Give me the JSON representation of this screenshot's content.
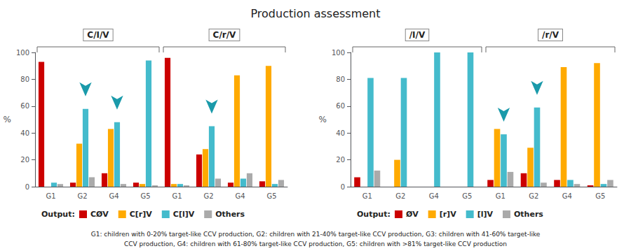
{
  "title": "Production assessment",
  "annotations": [
    "G1: children with 0-20% target-like CCV production, G2: children with 21-40% target-like CCV production, G3: children with 41-60% target-like",
    "CCV production, G4: children with 61-80% target-like CCV production, G5: children with >81% target-like CCV production"
  ],
  "chart_data": [
    {
      "type": "bar",
      "y_label": "%",
      "categories": [
        "G1",
        "G2",
        "G4",
        "G5",
        "G1",
        "G2",
        "G4",
        "G5"
      ],
      "sections": [
        {
          "label": "C/I/V",
          "categories": [
            "G1",
            "G2",
            "G4",
            "G5"
          ]
        },
        {
          "label": "C/r/V",
          "categories": [
            "G1",
            "G2",
            "G4",
            "G5"
          ]
        }
      ],
      "series": [
        {
          "name": "CØV",
          "color": "#cc0000",
          "values": [
            93,
            3,
            10,
            3,
            96,
            24,
            3,
            4
          ]
        },
        {
          "name": "C[r]V",
          "color": "#ffaa00",
          "values": [
            0,
            32,
            43,
            2,
            2,
            28,
            83,
            90
          ]
        },
        {
          "name": "C[l]V",
          "color": "#44bbcc",
          "values": [
            3,
            58,
            48,
            94,
            2,
            45,
            6,
            2
          ]
        },
        {
          "name": "Others",
          "color": "#aaaaaa",
          "values": [
            2,
            7,
            2,
            1,
            1,
            6,
            10,
            5
          ]
        }
      ],
      "arrows": [
        {
          "section": "C/I/V",
          "category": "G2",
          "series": "C[l]V"
        },
        {
          "section": "C/I/V",
          "category": "G4",
          "series": "C[l]V"
        },
        {
          "section": "C/r/V",
          "category": "G2",
          "series": "C[l]V"
        }
      ],
      "ylim": [
        0,
        100
      ],
      "yticks": [
        0,
        20,
        40,
        60,
        80,
        100
      ],
      "legend": "bottom",
      "legend_title": "Output:",
      "grid": false
    },
    {
      "type": "bar",
      "y_label": "%",
      "categories": [
        "G1",
        "G2",
        "G4",
        "G5",
        "G1",
        "G2",
        "G4",
        "G5"
      ],
      "sections": [
        {
          "label": "/I/V",
          "categories": [
            "G1",
            "G2",
            "G4",
            "G5"
          ]
        },
        {
          "label": "/r/V",
          "categories": [
            "G1",
            "G2",
            "G4",
            "G5"
          ]
        }
      ],
      "series": [
        {
          "name": "ØV",
          "color": "#cc0000",
          "values": [
            7,
            0,
            0,
            0,
            5,
            10,
            5,
            1
          ]
        },
        {
          "name": "[r]V",
          "color": "#ffaa00",
          "values": [
            0,
            20,
            0,
            0,
            43,
            29,
            89,
            92
          ]
        },
        {
          "name": "[l]V",
          "color": "#44bbcc",
          "values": [
            81,
            81,
            100,
            100,
            39,
            59,
            5,
            2
          ]
        },
        {
          "name": "Others",
          "color": "#aaaaaa",
          "values": [
            12,
            0,
            0,
            0,
            11,
            3,
            2,
            5
          ]
        }
      ],
      "arrows": [
        {
          "section": "/r/V",
          "category": "G1",
          "series": "[l]V"
        },
        {
          "section": "/r/V",
          "category": "G2",
          "series": "[l]V"
        }
      ],
      "ylim": [
        0,
        100
      ],
      "yticks": [
        0,
        20,
        40,
        60,
        80,
        100
      ],
      "legend": "bottom",
      "legend_title": "Output:",
      "grid": false
    }
  ]
}
